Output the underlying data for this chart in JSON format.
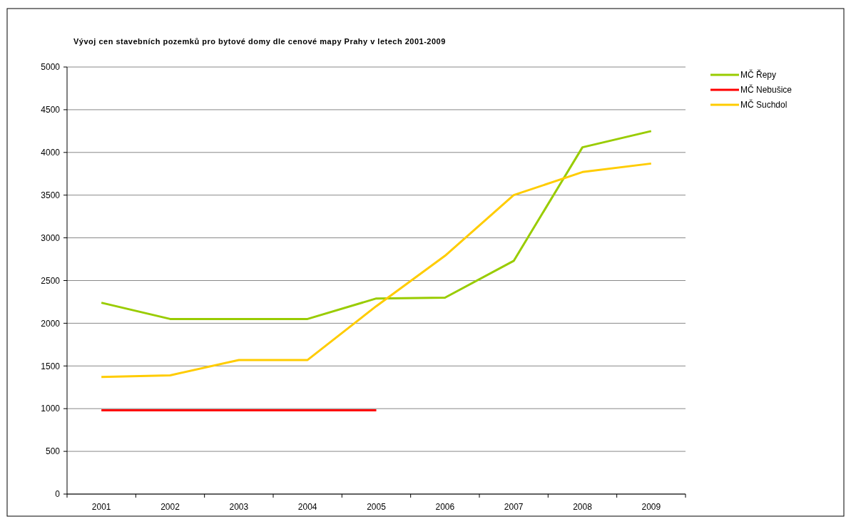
{
  "chart_data": {
    "type": "line",
    "title": "Vývoj cen stavebních pozemků pro bytové domy dle cenové mapy Prahy v letech 2001-2009",
    "categories": [
      "2001",
      "2002",
      "2003",
      "2004",
      "2005",
      "2006",
      "2007",
      "2008",
      "2009"
    ],
    "series": [
      {
        "name": "MČ Řepy",
        "color": "#99cc00",
        "values": [
          2240,
          2050,
          2050,
          2050,
          2290,
          2300,
          2730,
          4060,
          4250
        ]
      },
      {
        "name": "MČ Nebušice",
        "color": "#ff0000",
        "values": [
          980,
          980,
          980,
          980,
          980,
          null,
          null,
          null,
          null
        ]
      },
      {
        "name": "MČ Suchdol",
        "color": "#ffcc00",
        "values": [
          1370,
          1390,
          1570,
          1570,
          2200,
          2790,
          3500,
          3770,
          3870
        ]
      }
    ],
    "ylim": [
      0,
      5000
    ],
    "yticks": [
      0,
      500,
      1000,
      1500,
      2000,
      2500,
      3000,
      3500,
      4000,
      4500,
      5000
    ],
    "grid": "y",
    "legend": "right",
    "marker": "none",
    "line_style": "solid"
  }
}
